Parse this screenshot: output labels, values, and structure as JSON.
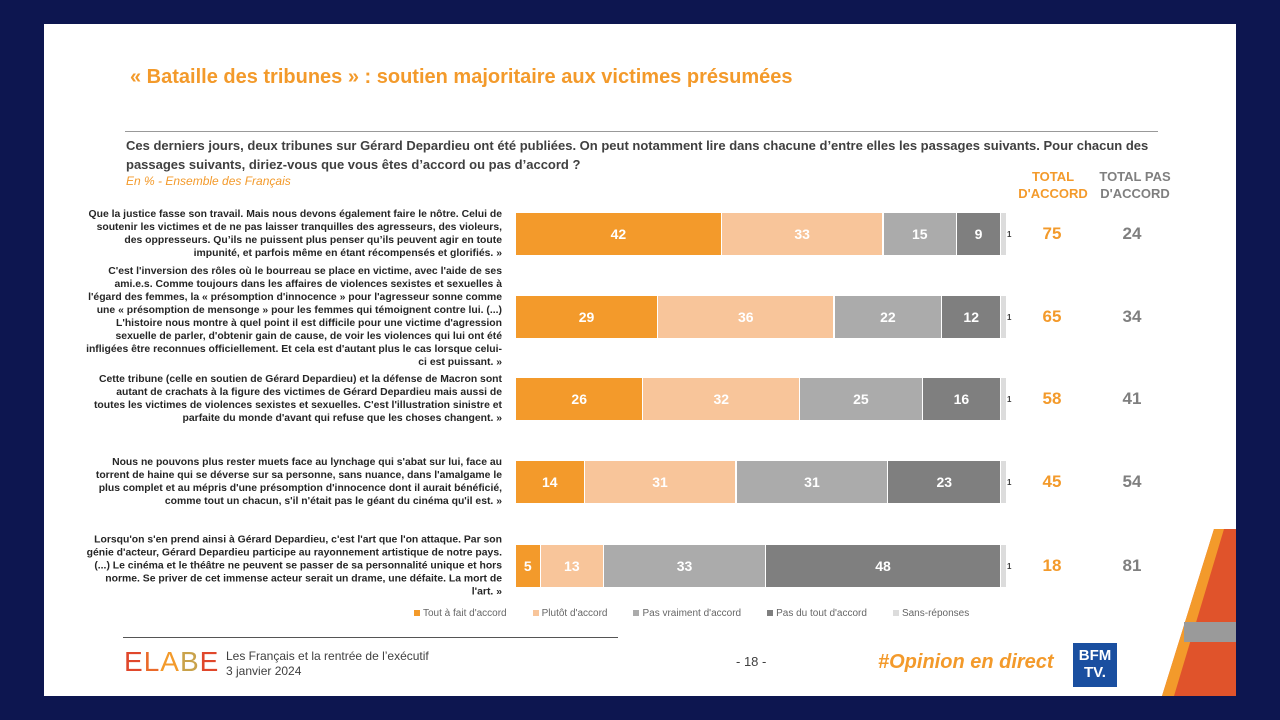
{
  "title": "« Bataille des tribunes » : soutien majoritaire aux victimes présumées",
  "question": "Ces derniers jours, deux tribunes sur Gérard Depardieu ont été publiées. On peut notamment lire dans chacune d’entre elles les passages suivants. Pour chacun des passages suivants, diriez-vous que vous êtes d’accord ou pas d’accord ?",
  "subtitle": "En % - Ensemble des Français",
  "headers": {
    "total_accord": "TOTAL D'ACCORD",
    "total_pas_accord": "TOTAL PAS D'ACCORD"
  },
  "chart_data": {
    "type": "bar",
    "orientation": "horizontal-stacked",
    "unit": "%",
    "categories": [
      "Que la justice fasse son travail. Mais nous devons également faire le nôtre. Celui de soutenir les victimes et de ne pas laisser tranquilles des agresseurs, des violeurs, des oppresseurs. Qu’ils ne puissent plus penser qu’ils peuvent agir en toute impunité, et parfois même en étant récompensés et glorifiés. »",
      "C'est l'inversion des rôles où le bourreau se place en victime, avec l'aide de ses ami.e.s. Comme toujours dans les affaires de violences sexistes et sexuelles à l'égard des femmes, la « présomption d'innocence » pour l'agresseur sonne comme une « présomption de mensonge » pour les femmes qui témoignent contre lui. (...) L'histoire nous montre à quel point il est difficile pour une victime d'agression sexuelle de parler, d'obtenir gain de cause, de voir les violences qui lui ont été infligées être reconnues officiellement. Et cela est d'autant plus le cas lorsque celui-ci est puissant. »",
      "Cette tribune (celle en soutien de Gérard Depardieu) et la défense de Macron sont autant de crachats à la figure des victimes de Gérard Depardieu mais aussi de toutes les victimes de violences sexistes et sexuelles. C'est l'illustration sinistre et parfaite du monde d'avant qui refuse que les choses changent. »",
      "Nous ne pouvons plus rester muets face au lynchage qui s'abat sur lui, face au torrent de haine qui se déverse sur sa personne, sans nuance, dans l'amalgame le plus complet et au mépris d'une présomption d'innocence dont il aurait bénéficié, comme tout un chacun, s'il n'était pas le géant du cinéma qu'il est. »",
      "Lorsqu'on s'en prend ainsi à Gérard Depardieu, c'est l'art que l'on attaque. Par son génie d'acteur, Gérard Depardieu participe au rayonnement artistique de notre pays. (...) Le cinéma et le théâtre ne peuvent se passer de sa personnalité unique et hors norme. Se priver de cet immense acteur serait un drame, une défaite. La mort de l'art. »"
    ],
    "series": [
      {
        "name": "Tout à fait d'accord",
        "color": "#f39a2b",
        "values": [
          42,
          29,
          26,
          14,
          5
        ]
      },
      {
        "name": "Plutôt d'accord",
        "color": "#f8c59a",
        "values": [
          33,
          36,
          32,
          31,
          13
        ]
      },
      {
        "name": "Pas vraiment d'accord",
        "color": "#ababab",
        "values": [
          15,
          22,
          25,
          31,
          33
        ]
      },
      {
        "name": "Pas du tout d'accord",
        "color": "#7f7f7f",
        "values": [
          9,
          12,
          16,
          23,
          48
        ]
      },
      {
        "name": "Sans-réponses",
        "color": "#dcdcdc",
        "values": [
          1,
          1,
          1,
          1,
          1
        ]
      }
    ],
    "total_accord": [
      75,
      65,
      58,
      45,
      18
    ],
    "total_pas_accord": [
      24,
      34,
      41,
      54,
      81
    ],
    "xlim": [
      0,
      100
    ],
    "legend_position": "bottom"
  },
  "footer": {
    "logo": "ELABE",
    "study": "Les Français et la rentrée de l’exécutif",
    "date": "3 janvier 2024",
    "page": "- 18 -",
    "hashtag": "#Opinion en direct",
    "channel_logo": "BFM TV."
  }
}
